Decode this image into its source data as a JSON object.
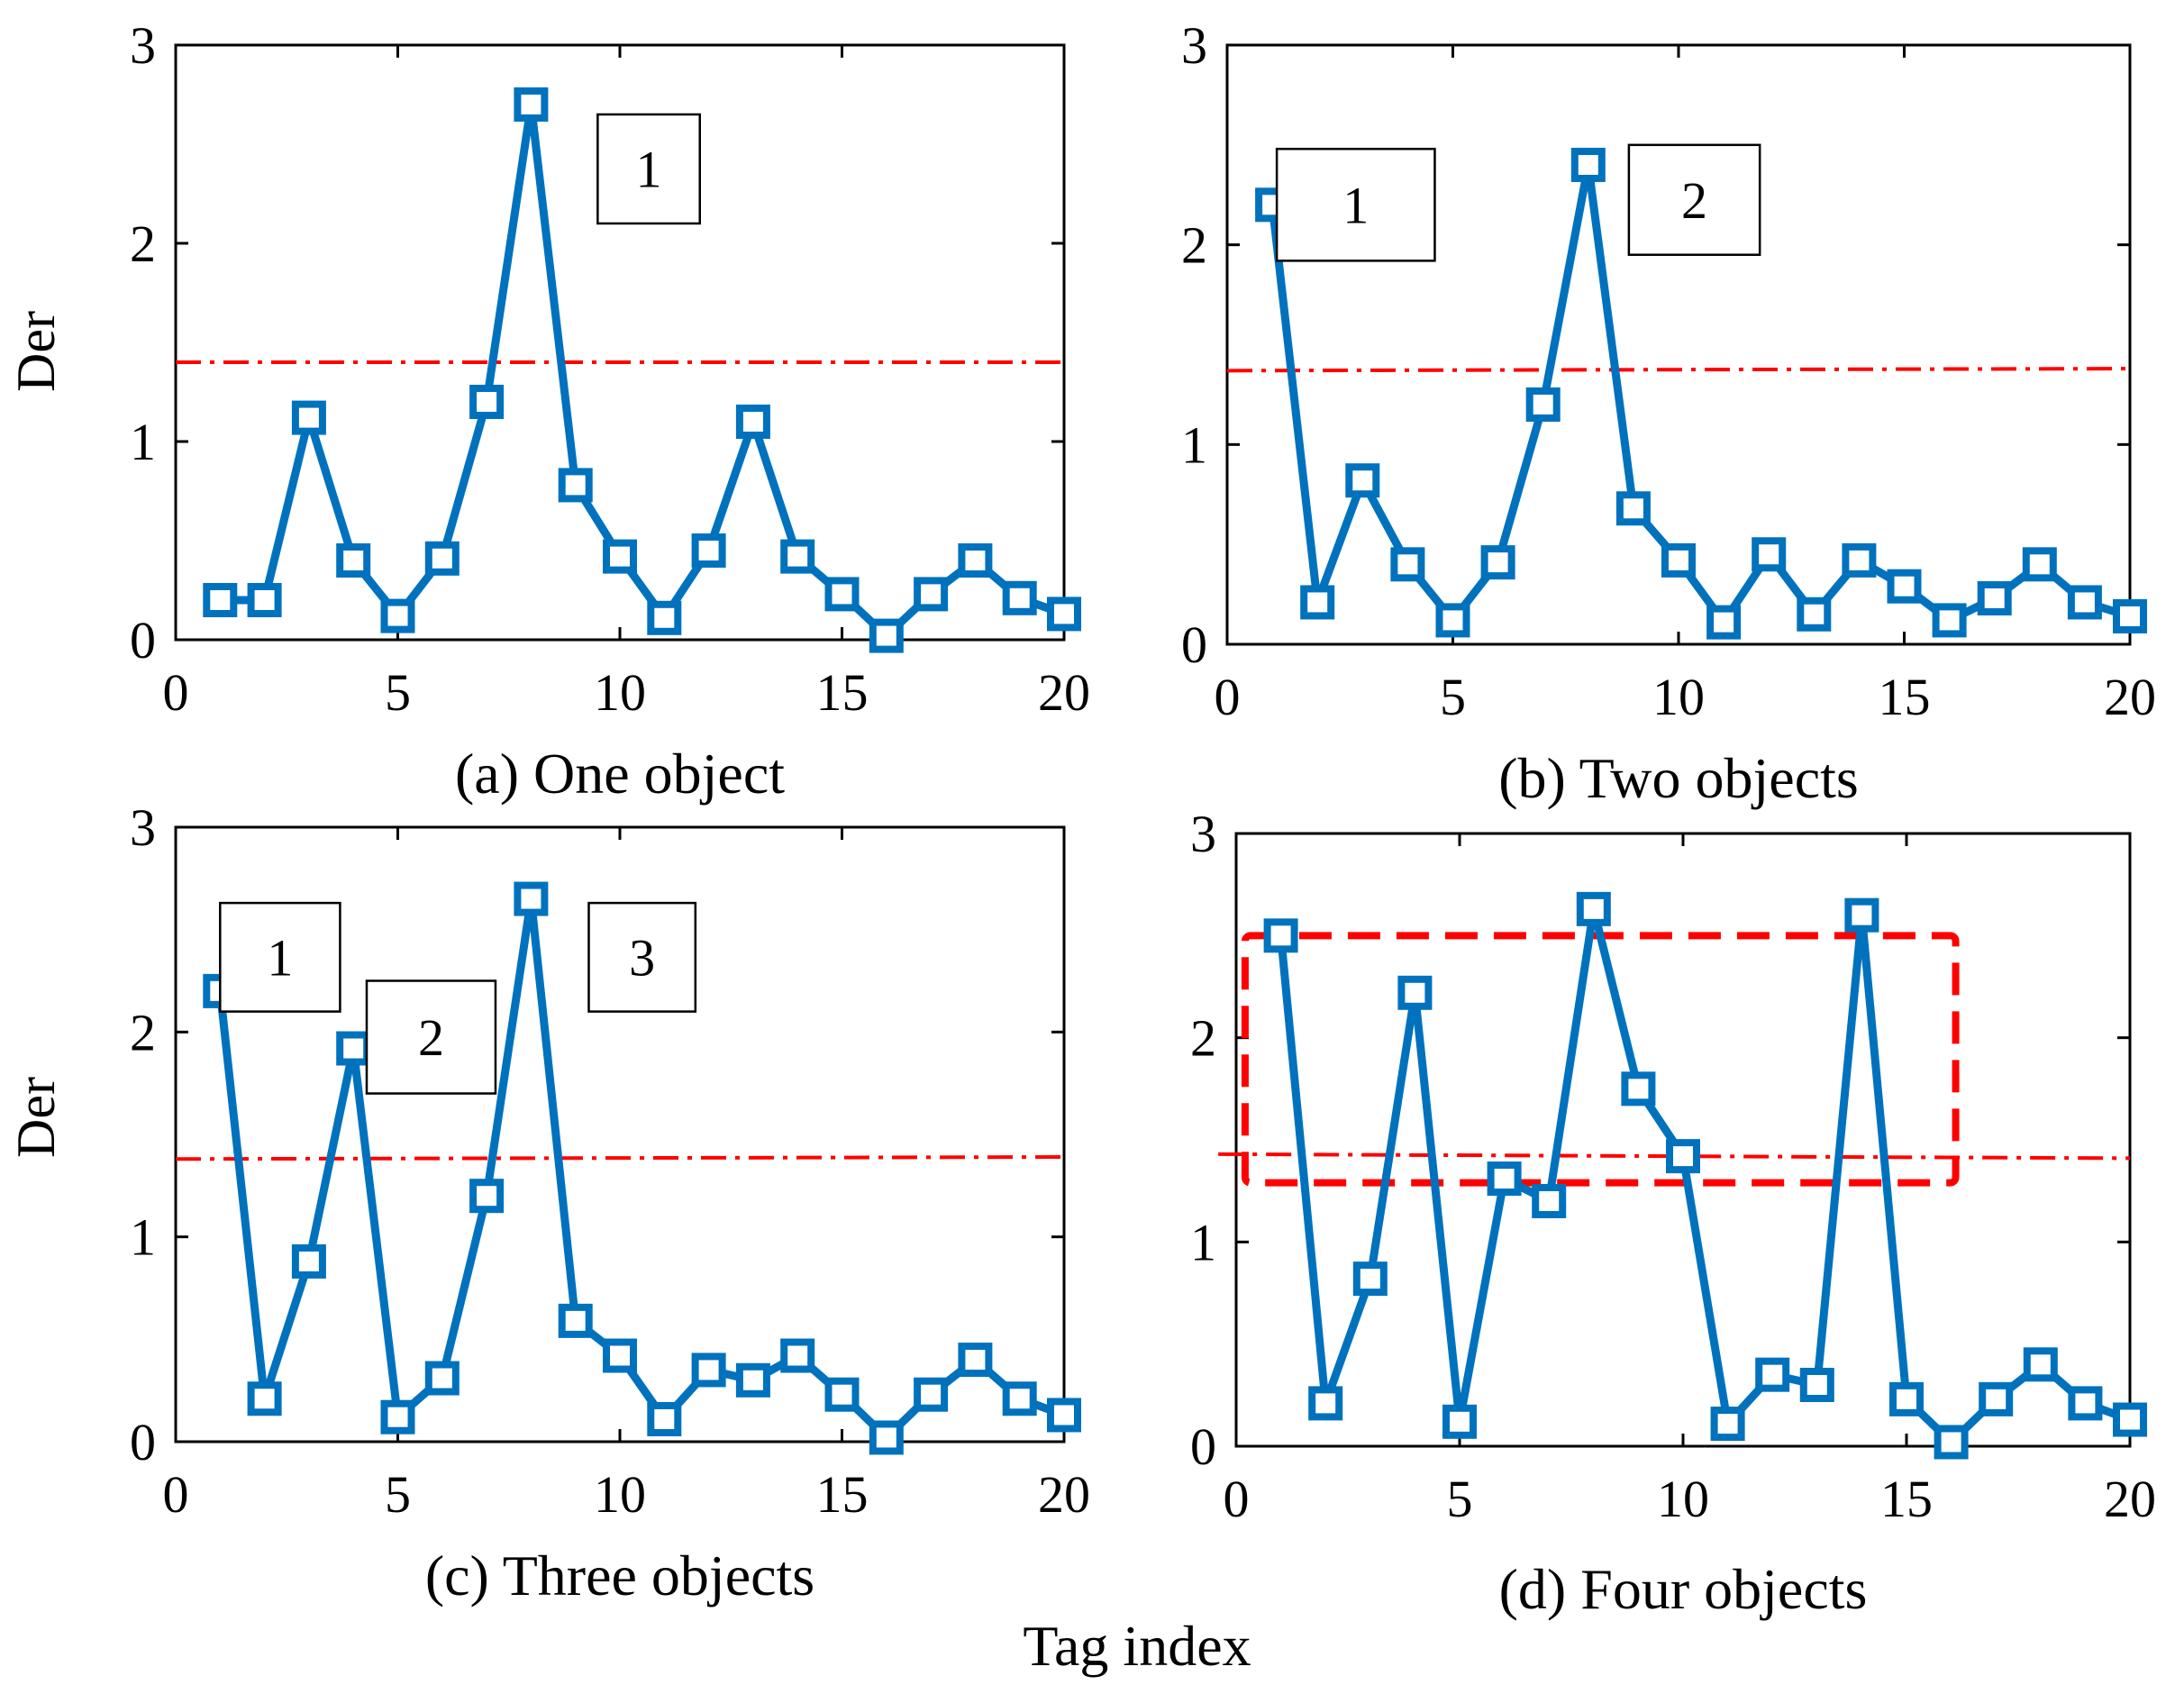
{
  "figure": {
    "xlabel": "Tag index",
    "ylabel": "Der"
  },
  "chart_data": [
    {
      "type": "line",
      "caption": "(a) One object",
      "xlabel": "Tag index",
      "ylabel": "Der",
      "xlim": [
        0,
        20
      ],
      "ylim": [
        0,
        3
      ],
      "xticks": [
        0,
        5,
        10,
        15,
        20
      ],
      "yticks": [
        0,
        1,
        2,
        3
      ],
      "grid": false,
      "x": [
        1,
        2,
        3,
        4,
        5,
        6,
        7,
        8,
        9,
        10,
        11,
        12,
        13,
        14,
        15,
        16,
        17,
        18,
        19,
        20
      ],
      "series": [
        {
          "name": "Der",
          "color": "#0072BD",
          "values": [
            0.2,
            0.2,
            1.12,
            0.4,
            0.12,
            0.41,
            1.2,
            2.7,
            0.78,
            0.42,
            0.11,
            0.45,
            1.1,
            0.42,
            0.23,
            0.02,
            0.23,
            0.4,
            0.21,
            0.13
          ]
        }
      ],
      "threshold": {
        "color": "#FF0000",
        "from": [
          0,
          1.4
        ],
        "to": [
          20,
          1.4
        ]
      },
      "annotations": [
        {
          "text": "1",
          "x": [
            9.5,
            11.8
          ],
          "y": [
            2.1,
            2.65
          ]
        }
      ]
    },
    {
      "type": "line",
      "caption": "(b) Two objects",
      "xlabel": "Tag index",
      "ylabel": "Der",
      "xlim": [
        0,
        20
      ],
      "ylim": [
        0,
        3
      ],
      "xticks": [
        0,
        5,
        10,
        15,
        20
      ],
      "yticks": [
        0,
        1,
        2,
        3
      ],
      "grid": false,
      "x": [
        1,
        2,
        3,
        4,
        5,
        6,
        7,
        8,
        9,
        10,
        11,
        12,
        13,
        14,
        15,
        16,
        17,
        18,
        19,
        20
      ],
      "series": [
        {
          "name": "Der",
          "color": "#0072BD",
          "values": [
            2.2,
            0.21,
            0.82,
            0.4,
            0.12,
            0.41,
            1.2,
            2.4,
            0.68,
            0.42,
            0.11,
            0.45,
            0.15,
            0.42,
            0.29,
            0.12,
            0.23,
            0.4,
            0.21,
            0.14
          ]
        }
      ],
      "threshold": {
        "color": "#FF0000",
        "from": [
          0,
          1.37
        ],
        "to": [
          20,
          1.38
        ]
      },
      "annotations": [
        {
          "text": "1",
          "x": [
            1.1,
            4.6
          ],
          "y": [
            1.92,
            2.48
          ]
        },
        {
          "text": "2",
          "x": [
            8.9,
            11.8
          ],
          "y": [
            1.95,
            2.5
          ]
        }
      ]
    },
    {
      "type": "line",
      "caption": "(c) Three objects",
      "xlabel": "Tag index",
      "ylabel": "Der",
      "xlim": [
        0,
        20
      ],
      "ylim": [
        0,
        3
      ],
      "xticks": [
        0,
        5,
        10,
        15,
        20
      ],
      "yticks": [
        0,
        1,
        2,
        3
      ],
      "grid": false,
      "x": [
        1,
        2,
        3,
        4,
        5,
        6,
        7,
        8,
        9,
        10,
        11,
        12,
        13,
        14,
        15,
        16,
        17,
        18,
        19,
        20
      ],
      "series": [
        {
          "name": "Der",
          "color": "#0072BD",
          "values": [
            2.2,
            0.21,
            0.88,
            1.92,
            0.12,
            0.31,
            1.2,
            2.65,
            0.59,
            0.42,
            0.11,
            0.35,
            0.3,
            0.42,
            0.23,
            0.02,
            0.23,
            0.4,
            0.21,
            0.13
          ]
        }
      ],
      "threshold": {
        "color": "#FF0000",
        "from": [
          0,
          1.38
        ],
        "to": [
          20,
          1.39
        ]
      },
      "annotations": [
        {
          "text": "1",
          "x": [
            1.0,
            3.7
          ],
          "y": [
            2.1,
            2.63
          ]
        },
        {
          "text": "2",
          "x": [
            4.3,
            7.2
          ],
          "y": [
            1.7,
            2.25
          ]
        },
        {
          "text": "3",
          "x": [
            9.3,
            11.7
          ],
          "y": [
            2.1,
            2.63
          ]
        }
      ]
    },
    {
      "type": "line",
      "caption": "(d) Four objects",
      "xlabel": "Tag index",
      "ylabel": "Der",
      "xlim": [
        0,
        20
      ],
      "ylim": [
        0,
        3
      ],
      "xticks": [
        0,
        5,
        10,
        15,
        20
      ],
      "yticks": [
        0,
        1,
        2,
        3
      ],
      "grid": false,
      "x": [
        1,
        2,
        3,
        4,
        5,
        6,
        7,
        8,
        9,
        10,
        11,
        12,
        13,
        14,
        15,
        16,
        17,
        18,
        19,
        20
      ],
      "series": [
        {
          "name": "Der",
          "color": "#0072BD",
          "values": [
            2.5,
            0.21,
            0.82,
            2.22,
            0.12,
            1.31,
            1.2,
            2.63,
            1.75,
            1.42,
            0.11,
            0.35,
            0.3,
            2.6,
            0.23,
            0.02,
            0.23,
            0.4,
            0.21,
            0.13
          ]
        }
      ],
      "threshold": {
        "color": "#FF0000",
        "from": [
          -0.4,
          1.43
        ],
        "to": [
          20,
          1.41
        ]
      },
      "highlight_region": {
        "color": "#FF0000",
        "x": [
          0.2,
          16.1
        ],
        "y": [
          1.29,
          2.5
        ]
      }
    }
  ]
}
